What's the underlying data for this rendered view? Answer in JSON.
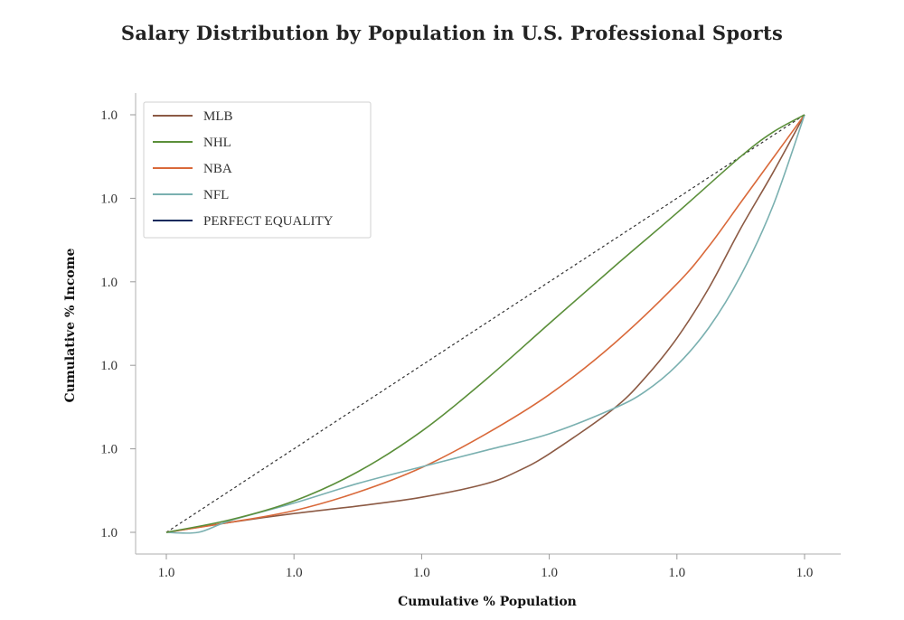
{
  "chart_data": {
    "type": "line",
    "title": "Salary Distribution by Population in U.S. Professional Sports",
    "xlabel": "Cumulative % Population",
    "ylabel": "Cumulative % Income",
    "x_tick_labels": [
      "1.0",
      "1.0",
      "1.0",
      "1.0",
      "1.0",
      "1.0"
    ],
    "y_tick_labels": [
      "1.0",
      "1.0",
      "1.0",
      "1.0",
      "1.0",
      "1.0"
    ],
    "xlim": [
      0,
      1
    ],
    "ylim": [
      0,
      1
    ],
    "grid": false,
    "legend_position": "top-left",
    "series": [
      {
        "name": "MLB",
        "color": "#8c5a44",
        "style": "solid",
        "x": [
          0,
          0.1,
          0.2,
          0.3,
          0.4,
          0.5,
          0.55,
          0.6,
          0.7,
          0.75,
          0.8,
          0.85,
          0.9,
          0.95,
          1.0
        ],
        "y": [
          0,
          0.024,
          0.045,
          0.063,
          0.084,
          0.116,
          0.146,
          0.188,
          0.295,
          0.37,
          0.465,
          0.585,
          0.728,
          0.86,
          1.0
        ]
      },
      {
        "name": "NHL",
        "color": "#5b8f3a",
        "style": "solid",
        "x": [
          0,
          0.1,
          0.2,
          0.3,
          0.4,
          0.5,
          0.6,
          0.7,
          0.8,
          0.9,
          0.95,
          1.0
        ],
        "y": [
          0,
          0.03,
          0.075,
          0.145,
          0.242,
          0.365,
          0.5,
          0.634,
          0.765,
          0.9,
          0.958,
          1.0
        ]
      },
      {
        "name": "NBA",
        "color": "#d9693a",
        "style": "solid",
        "x": [
          0,
          0.1,
          0.2,
          0.3,
          0.4,
          0.5,
          0.6,
          0.7,
          0.8,
          0.85,
          0.9,
          0.95,
          1.0
        ],
        "y": [
          0,
          0.024,
          0.052,
          0.096,
          0.155,
          0.235,
          0.33,
          0.45,
          0.595,
          0.685,
          0.79,
          0.895,
          1.0
        ]
      },
      {
        "name": "NFL",
        "color": "#7ab0b0",
        "style": "solid",
        "x": [
          0,
          0.05,
          0.1,
          0.2,
          0.3,
          0.4,
          0.5,
          0.6,
          0.7,
          0.75,
          0.8,
          0.85,
          0.9,
          0.95,
          1.0
        ],
        "y": [
          0,
          0.0,
          0.028,
          0.07,
          0.117,
          0.157,
          0.196,
          0.236,
          0.296,
          0.337,
          0.4,
          0.49,
          0.615,
          0.78,
          1.0
        ]
      },
      {
        "name": "PERFECT EQUALITY",
        "color": "#0d2a5c",
        "plot_color": "#333333",
        "style": "dotted",
        "x": [
          0,
          1
        ],
        "y": [
          0,
          1
        ]
      }
    ]
  }
}
